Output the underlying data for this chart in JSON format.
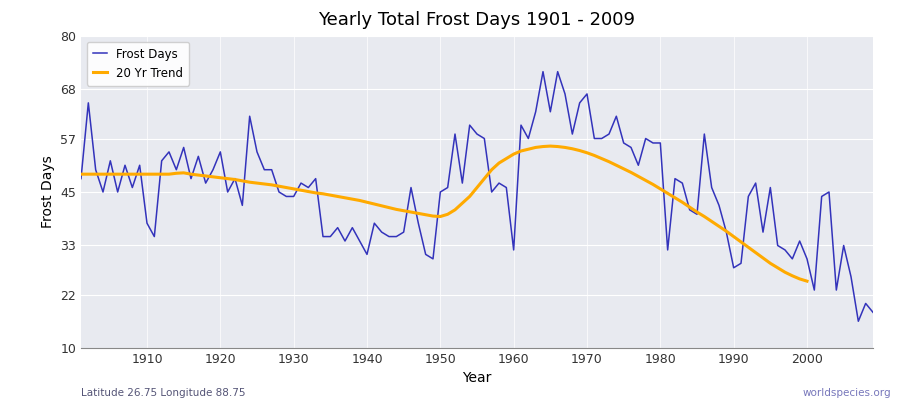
{
  "title": "Yearly Total Frost Days 1901 - 2009",
  "xlabel": "Year",
  "ylabel": "Frost Days",
  "footnote_left": "Latitude 26.75 Longitude 88.75",
  "footnote_right": "worldspecies.org",
  "ylim": [
    10,
    80
  ],
  "yticks": [
    10,
    22,
    33,
    45,
    57,
    68,
    80
  ],
  "xlim": [
    1901,
    2009
  ],
  "xticks": [
    1910,
    1920,
    1930,
    1940,
    1950,
    1960,
    1970,
    1980,
    1990,
    2000
  ],
  "bg_color": "#e8eaf0",
  "fig_bg_color": "#f0f0f0",
  "line_color": "#3333bb",
  "trend_color": "#ffaa00",
  "years": [
    1901,
    1902,
    1903,
    1904,
    1905,
    1906,
    1907,
    1908,
    1909,
    1910,
    1911,
    1912,
    1913,
    1914,
    1915,
    1916,
    1917,
    1918,
    1919,
    1920,
    1921,
    1922,
    1923,
    1924,
    1925,
    1926,
    1927,
    1928,
    1929,
    1930,
    1931,
    1932,
    1933,
    1934,
    1935,
    1936,
    1937,
    1938,
    1939,
    1940,
    1941,
    1942,
    1943,
    1944,
    1945,
    1946,
    1947,
    1948,
    1949,
    1950,
    1951,
    1952,
    1953,
    1954,
    1955,
    1956,
    1957,
    1958,
    1959,
    1960,
    1961,
    1962,
    1963,
    1964,
    1965,
    1966,
    1967,
    1968,
    1969,
    1970,
    1971,
    1972,
    1973,
    1974,
    1975,
    1976,
    1977,
    1978,
    1979,
    1980,
    1981,
    1982,
    1983,
    1984,
    1985,
    1986,
    1987,
    1988,
    1989,
    1990,
    1991,
    1992,
    1993,
    1994,
    1995,
    1996,
    1997,
    1998,
    1999,
    2000,
    2001,
    2002,
    2003,
    2004,
    2005,
    2006,
    2007,
    2008,
    2009
  ],
  "frost_days": [
    48,
    65,
    50,
    45,
    52,
    45,
    51,
    46,
    51,
    38,
    35,
    52,
    54,
    50,
    55,
    48,
    53,
    47,
    50,
    54,
    45,
    48,
    42,
    62,
    54,
    50,
    50,
    45,
    44,
    44,
    47,
    46,
    48,
    35,
    35,
    37,
    34,
    37,
    34,
    31,
    38,
    36,
    35,
    35,
    36,
    46,
    38,
    31,
    30,
    45,
    46,
    58,
    47,
    60,
    58,
    57,
    45,
    47,
    46,
    32,
    60,
    57,
    63,
    72,
    63,
    72,
    67,
    58,
    65,
    67,
    57,
    57,
    58,
    62,
    56,
    55,
    51,
    57,
    56,
    56,
    32,
    48,
    47,
    41,
    40,
    58,
    46,
    42,
    36,
    28,
    29,
    44,
    47,
    36,
    46,
    33,
    32,
    30,
    34,
    30,
    23,
    44,
    45,
    23,
    33,
    26,
    16,
    20,
    18
  ],
  "trend_years": [
    1901,
    1902,
    1903,
    1904,
    1905,
    1906,
    1907,
    1908,
    1909,
    1910,
    1911,
    1912,
    1913,
    1914,
    1915,
    1916,
    1917,
    1918,
    1919,
    1920,
    1921,
    1922,
    1923,
    1924,
    1925,
    1926,
    1927,
    1928,
    1929,
    1930,
    1931,
    1932,
    1933,
    1934,
    1935,
    1936,
    1937,
    1938,
    1939,
    1940,
    1941,
    1942,
    1943,
    1944,
    1945,
    1946,
    1947,
    1948,
    1949,
    1950,
    1951,
    1952,
    1953,
    1954,
    1955,
    1956,
    1957,
    1958,
    1959,
    1960,
    1961,
    1962,
    1963,
    1964,
    1965,
    1966,
    1967,
    1968,
    1969,
    1970,
    1971,
    1972,
    1973,
    1974,
    1975,
    1976,
    1977,
    1978,
    1979,
    1980,
    1981,
    1982,
    1983,
    1984,
    1985,
    1986,
    1987,
    1988,
    1989,
    1990,
    1991,
    1992,
    1993,
    1994,
    1995,
    1996,
    1997,
    1998,
    1999,
    2000,
    2001,
    2002,
    2003,
    2004,
    2005,
    2006,
    2007,
    2008,
    2009
  ],
  "trend_values": [
    49.0,
    49.0,
    49.0,
    49.0,
    49.0,
    49.0,
    49.0,
    49.0,
    49.0,
    49.0,
    49.0,
    49.0,
    49.0,
    49.2,
    49.3,
    49.0,
    48.8,
    48.6,
    48.4,
    48.2,
    48.0,
    47.8,
    47.5,
    47.2,
    47.0,
    46.8,
    46.6,
    46.3,
    46.0,
    45.7,
    45.4,
    45.1,
    44.8,
    44.6,
    44.3,
    44.0,
    43.7,
    43.4,
    43.1,
    42.7,
    42.3,
    41.9,
    41.5,
    41.1,
    40.8,
    40.5,
    40.2,
    39.9,
    39.6,
    39.5,
    40.0,
    41.0,
    42.5,
    44.0,
    46.0,
    48.0,
    50.0,
    51.5,
    52.5,
    53.5,
    54.2,
    54.6,
    55.0,
    55.2,
    55.3,
    55.2,
    55.0,
    54.7,
    54.3,
    53.8,
    53.2,
    52.5,
    51.8,
    51.0,
    50.2,
    49.4,
    48.5,
    47.6,
    46.7,
    45.7,
    44.7,
    43.7,
    42.7,
    41.6,
    40.5,
    39.5,
    38.4,
    37.3,
    36.2,
    35.0,
    33.8,
    32.6,
    31.4,
    30.2,
    29.0,
    28.0,
    27.0,
    26.2,
    25.5,
    25.0,
    null,
    null,
    null,
    null,
    null,
    null,
    null,
    null,
    null
  ]
}
